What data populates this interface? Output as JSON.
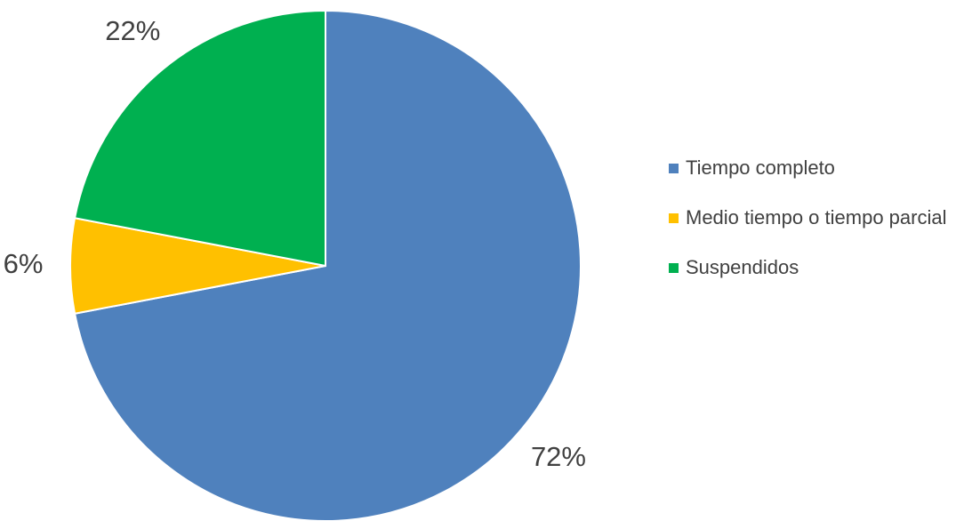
{
  "chart_data": {
    "type": "pie",
    "categories": [
      "Tiempo completo",
      "Medio tiempo o tiempo parcial",
      "Suspendidos"
    ],
    "values": [
      72,
      6,
      22
    ],
    "value_labels": [
      "72%",
      "6%",
      "22%"
    ],
    "colors": [
      "#4f81bd",
      "#ffc000",
      "#00b050"
    ],
    "legend": "right"
  }
}
